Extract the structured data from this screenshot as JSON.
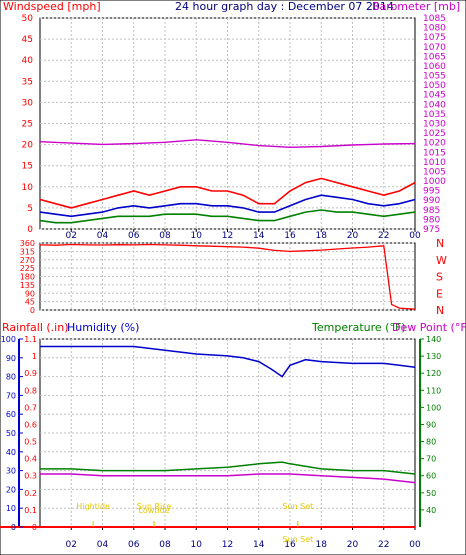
{
  "chart_data": [
    {
      "id": "wind_baro",
      "type": "line",
      "title": "24 hour graph day : December 07 2014",
      "ylabel_left": "Windspeed [mph]",
      "ylabel_right": "Barometer [mb]",
      "ylim_left": [
        0,
        50
      ],
      "ylim_right": [
        975,
        1085
      ],
      "yticks_left": [
        0,
        5,
        10,
        15,
        20,
        25,
        30,
        35,
        40,
        45,
        50
      ],
      "yticks_right": [
        975,
        980,
        985,
        990,
        995,
        1000,
        1005,
        1010,
        1015,
        1020,
        1025,
        1030,
        1035,
        1040,
        1045,
        1050,
        1055,
        1060,
        1065,
        1070,
        1075,
        1080,
        1085
      ],
      "grid": true,
      "xlim": [
        0,
        24
      ],
      "series": [
        {
          "axis": "right",
          "color": "#cc00cc",
          "x": [
            0,
            2,
            4,
            6,
            8,
            10,
            12,
            14,
            16,
            18,
            20,
            22,
            24
          ],
          "y": [
            1020.5,
            1019.8,
            1019.1,
            1019.5,
            1020.2,
            1021.5,
            1020.2,
            1018.5,
            1017.6,
            1018.0,
            1018.8,
            1019.3,
            1019.5
          ]
        },
        {
          "axis": "left",
          "color": "#ff0000",
          "x": [
            0,
            1,
            2,
            3,
            4,
            5,
            6,
            7,
            8,
            9,
            10,
            11,
            12,
            13,
            14,
            15,
            16,
            17,
            18,
            19,
            20,
            21,
            22,
            23,
            24
          ],
          "y": [
            7,
            6,
            5,
            6,
            7,
            8,
            9,
            8,
            9,
            10,
            10,
            9,
            9,
            8,
            6,
            6,
            9,
            11,
            12,
            11,
            10,
            9,
            8,
            9,
            11
          ]
        },
        {
          "axis": "left",
          "color": "#0000cc",
          "x": [
            0,
            1,
            2,
            3,
            4,
            5,
            6,
            7,
            8,
            9,
            10,
            11,
            12,
            13,
            14,
            15,
            16,
            17,
            18,
            19,
            20,
            21,
            22,
            23,
            24
          ],
          "y": [
            4,
            3.5,
            3,
            3.5,
            4,
            5,
            5.5,
            5,
            5.5,
            6,
            6,
            5.5,
            5.5,
            5,
            4,
            4,
            5.5,
            7,
            8,
            7.5,
            7,
            6,
            5.5,
            6,
            7
          ]
        },
        {
          "axis": "left",
          "color": "#008000",
          "x": [
            0,
            1,
            2,
            3,
            4,
            5,
            6,
            7,
            8,
            9,
            10,
            11,
            12,
            13,
            14,
            15,
            16,
            17,
            18,
            19,
            20,
            21,
            22,
            23,
            24
          ],
          "y": [
            2,
            1.5,
            1.5,
            2,
            2.5,
            3,
            3,
            3,
            3.5,
            3.5,
            3.5,
            3,
            3,
            2.5,
            2,
            2,
            3,
            4,
            4.5,
            4,
            4,
            3.5,
            3,
            3.5,
            4
          ]
        }
      ]
    },
    {
      "id": "wind_dir",
      "type": "line",
      "ylim": [
        0,
        360
      ],
      "yticks": [
        0,
        45,
        90,
        135,
        180,
        225,
        270,
        315,
        360
      ],
      "compass": [
        "N",
        "W",
        "S",
        "E",
        "N"
      ],
      "xlim": [
        0,
        24
      ],
      "grid": true,
      "series": [
        {
          "color": "#ff0000",
          "x": [
            0,
            1,
            2,
            3,
            4,
            5,
            6,
            7,
            8,
            9,
            10,
            11,
            12,
            13,
            14,
            15,
            16,
            17,
            18,
            19,
            20,
            21,
            22,
            22.5,
            23,
            24
          ],
          "y": [
            350,
            348,
            352,
            350,
            349,
            351,
            350,
            352,
            350,
            348,
            345,
            343,
            340,
            338,
            332,
            320,
            315,
            318,
            322,
            328,
            333,
            338,
            345,
            30,
            10,
            5
          ]
        }
      ]
    },
    {
      "id": "rain_hum_temp",
      "type": "line",
      "ylabel_rainfall": "Rainfall (.in)",
      "ylabel_humidity": "Humidity (%)",
      "ylabel_temp": "Temperature (°F)",
      "ylabel_dew": "Dew Point (°F)",
      "ylim_humidity": [
        0,
        100
      ],
      "ylim_rain": [
        0,
        1.1
      ],
      "ylim_temp": [
        30,
        140
      ],
      "yticks_humidity": [
        0,
        10,
        20,
        30,
        40,
        50,
        60,
        70,
        80,
        90,
        100
      ],
      "yticks_rain": [
        0,
        0.1,
        0.2,
        0.3,
        0.4,
        0.5,
        0.6,
        0.7,
        0.8,
        0.9,
        1,
        1.1
      ],
      "yticks_temp": [
        40,
        50,
        60,
        70,
        80,
        90,
        100,
        110,
        120,
        130,
        140
      ],
      "xlim": [
        0,
        24
      ],
      "grid": true,
      "series": [
        {
          "axis": "humidity",
          "color": "#0000cc",
          "x": [
            0,
            2,
            4,
            6,
            8,
            10,
            12,
            13,
            14,
            14.8,
            15.5,
            16,
            17,
            18,
            20,
            22,
            23,
            24
          ],
          "y": [
            96,
            96,
            96,
            96,
            94,
            92,
            91,
            90,
            88,
            84,
            80,
            86,
            89,
            88,
            87,
            87,
            86,
            85
          ]
        },
        {
          "axis": "temp",
          "color": "#008000",
          "x": [
            0,
            2,
            4,
            6,
            8,
            10,
            12,
            14,
            15.5,
            16,
            18,
            20,
            22,
            24
          ],
          "y": [
            64,
            64,
            63,
            63,
            63,
            64,
            65,
            67,
            68,
            67,
            64,
            63,
            63,
            61
          ]
        },
        {
          "axis": "temp",
          "color": "#cc00cc",
          "x": [
            0,
            2,
            4,
            6,
            8,
            10,
            12,
            14,
            16,
            18,
            20,
            22,
            24
          ],
          "y": [
            61,
            61,
            60,
            60,
            60,
            60,
            60,
            61,
            61,
            60,
            59,
            58,
            56
          ]
        },
        {
          "axis": "rain",
          "color": "#ff0000",
          "x": [
            0,
            24
          ],
          "y": [
            0,
            0
          ]
        }
      ],
      "annotations": [
        {
          "label": "Hightide",
          "x": 3.4,
          "row": 0
        },
        {
          "label": "Sun Rise",
          "x": 7.3,
          "row": 0
        },
        {
          "label": "Lowtide",
          "x": 7.3,
          "row": 1
        },
        {
          "label": "Sun Set",
          "x": 16.5,
          "row": 0
        },
        {
          "label": "Sun Set",
          "x": 16.5,
          "row": 2
        }
      ]
    }
  ],
  "x_ticks": [
    "02",
    "04",
    "06",
    "08",
    "10",
    "12",
    "14",
    "16",
    "18",
    "20",
    "22",
    "00"
  ],
  "x_tick_hours": [
    2,
    4,
    6,
    8,
    10,
    12,
    14,
    16,
    18,
    20,
    22,
    24
  ],
  "colors": {
    "red": "#ff0000",
    "magenta": "#cc00cc",
    "blue": "#0000cc",
    "green": "#008000",
    "grid": "#c0c0c0",
    "annotation": "#e6c800"
  }
}
